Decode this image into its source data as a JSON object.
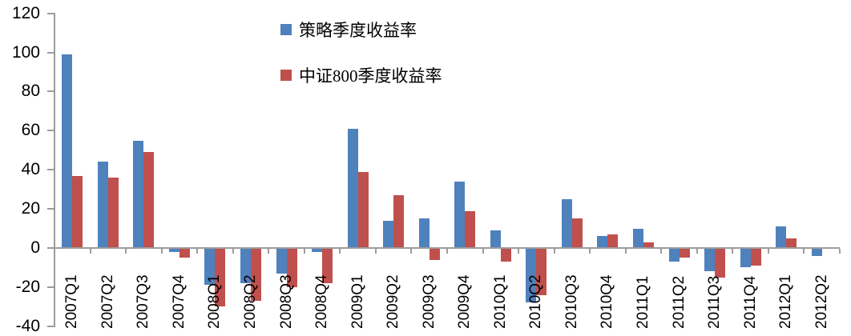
{
  "chart_data": {
    "type": "bar",
    "title": "",
    "xlabel": "",
    "ylabel": "",
    "categories": [
      "2007Q1",
      "2007Q2",
      "2007Q3",
      "2007Q4",
      "2008Q1",
      "2008Q2",
      "2008Q3",
      "2008Q4",
      "2009Q1",
      "2009Q2",
      "2009Q3",
      "2009Q4",
      "2010Q1",
      "2010Q2",
      "2010Q3",
      "2010Q4",
      "2011Q1",
      "2011Q2",
      "2011Q3",
      "2011Q4",
      "2012Q1",
      "2012Q2"
    ],
    "series": [
      {
        "name": "策略季度收益率",
        "color": "#4F81BD",
        "values": [
          99,
          44,
          55,
          -2,
          -19,
          -18,
          -13,
          -2,
          61,
          14,
          15,
          34,
          9,
          -28,
          25,
          6,
          10,
          -7,
          -12,
          -10,
          11,
          -4
        ]
      },
      {
        "name": "中证800季度收益率",
        "color": "#C0504D",
        "values": [
          37,
          36,
          49,
          -5,
          -30,
          -27,
          -20,
          -18,
          39,
          27,
          -6,
          19,
          -7,
          -24,
          15,
          7,
          3,
          -5,
          -15,
          -9,
          5,
          0.5
        ]
      }
    ],
    "ylim": [
      -40,
      120
    ],
    "yticks": [
      120,
      100,
      80,
      60,
      40,
      20,
      0,
      -20,
      -40
    ],
    "grid": false,
    "legend_position": "top-center",
    "axis_color": "#9d9d9d",
    "tick_label_color": "#000000"
  }
}
